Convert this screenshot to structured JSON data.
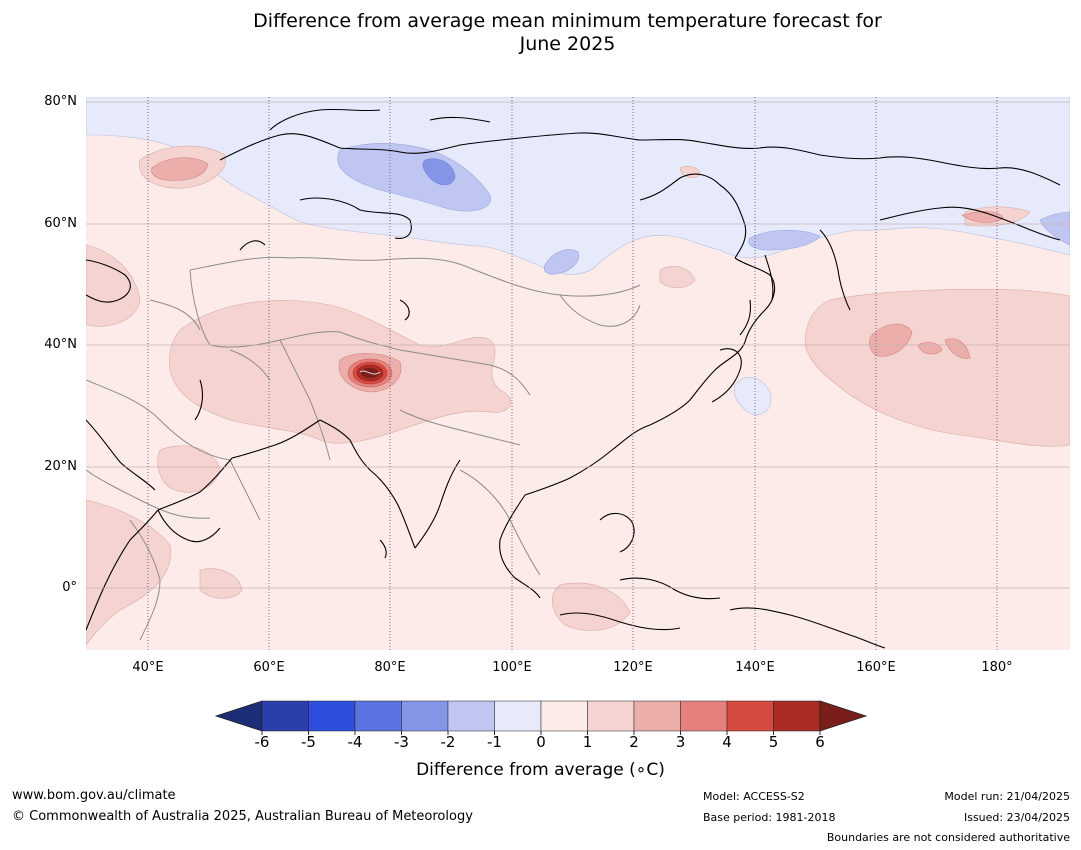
{
  "title": {
    "line1": "Difference from average mean minimum temperature forecast for",
    "line2": "June 2025"
  },
  "map": {
    "lat_labels": [
      "80°N",
      "60°N",
      "40°N",
      "20°N",
      "0°"
    ],
    "lon_labels": [
      "40°E",
      "60°E",
      "80°E",
      "100°E",
      "120°E",
      "140°E",
      "160°E",
      "180°"
    ],
    "extent": {
      "lon_min": 30,
      "lon_max": 191,
      "lat_min": -10,
      "lat_max": 81
    },
    "background_anomaly_class": "0 to 1"
  },
  "colorbar": {
    "ticks": [
      "-6",
      "-5",
      "-4",
      "-3",
      "-2",
      "-1",
      "0",
      "1",
      "2",
      "3",
      "4",
      "5",
      "6"
    ],
    "colors": [
      "#2a3fab",
      "#2e4fdd",
      "#5c74e1",
      "#8595e6",
      "#c0c6f2",
      "#e7eafb",
      "#fcebe9",
      "#f5d3d0",
      "#ecaeab",
      "#e4817c",
      "#d64a42",
      "#a92b23"
    ],
    "extend_low_color": "#1e2d77",
    "extend_high_color": "#7a1e1a",
    "label": "Difference from average (∘C)"
  },
  "footer": {
    "website": "www.bom.gov.au/climate",
    "copyright": "© Commonwealth of Australia 2025, Australian Bureau of Meteorology",
    "model": "Model: ACCESS-S2",
    "base_period": "Base period: 1981-2018",
    "model_run": "Model run: 21/04/2025",
    "issued": "Issued: 23/04/2025",
    "disclaimer": "Boundaries are not considered authoritative"
  }
}
